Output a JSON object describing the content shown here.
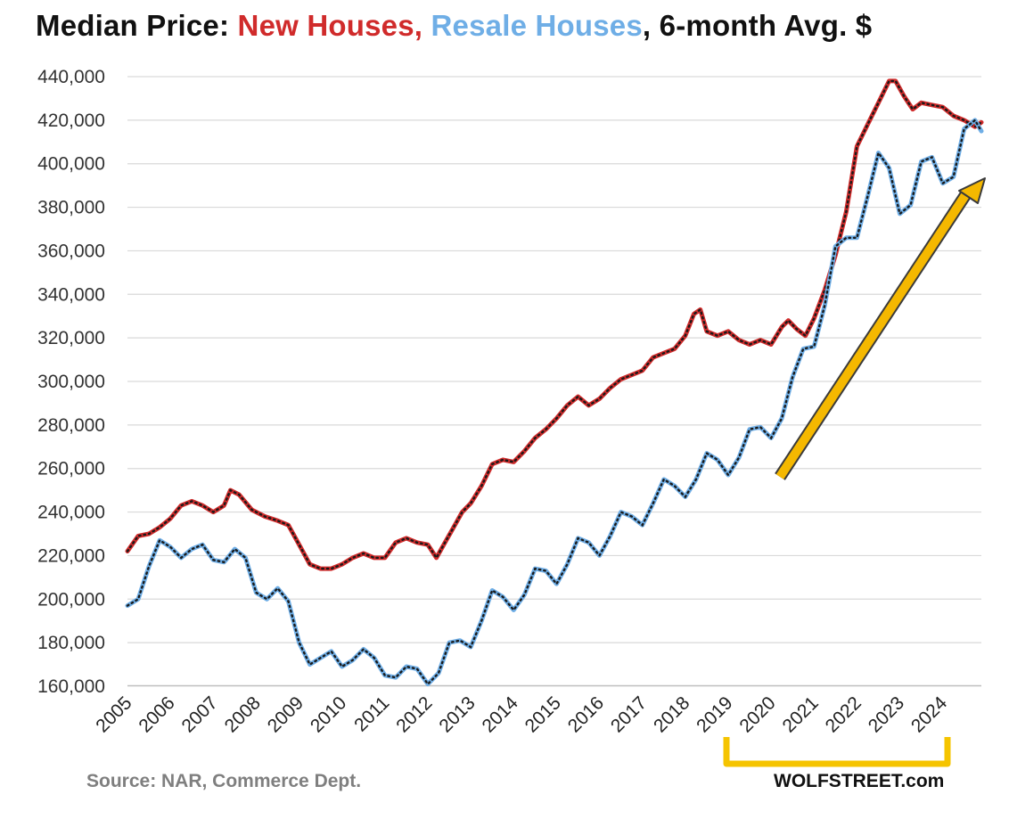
{
  "title_parts": {
    "prefix": "Median Price: ",
    "series1": "New Houses,",
    "series2": " Resale Houses",
    "suffix": ", 6-month Avg. $"
  },
  "source": "Source: NAR, Commerce Dept.",
  "watermark": "WOLFSTREET.com",
  "colors": {
    "new_houses": "#d02b2b",
    "resale_houses": "#6faee6",
    "arrow": "#f5b800",
    "bracket": "#f5c400",
    "grid": "#d9d9d9"
  },
  "chart_data": {
    "type": "line",
    "title": "Median Price: New Houses, Resale Houses, 6-month Avg. $",
    "ylim": [
      160000,
      440000
    ],
    "yticks": [
      "160,000",
      "180,000",
      "200,000",
      "220,000",
      "240,000",
      "260,000",
      "280,000",
      "300,000",
      "320,000",
      "340,000",
      "360,000",
      "380,000",
      "400,000",
      "420,000",
      "440,000"
    ],
    "xlim": [
      2005,
      2024.9
    ],
    "xticks": [
      "2005",
      "2006",
      "2007",
      "2008",
      "2009",
      "2010",
      "2011",
      "2012",
      "2013",
      "2014",
      "2015",
      "2016",
      "2017",
      "2018",
      "2019",
      "2020",
      "2021",
      "2022",
      "2023",
      "2024"
    ],
    "grid": "horizontal",
    "series": [
      {
        "name": "New Houses",
        "color": "#d02b2b",
        "points": [
          [
            2005.0,
            222000
          ],
          [
            2005.25,
            229000
          ],
          [
            2005.5,
            230000
          ],
          [
            2005.75,
            233000
          ],
          [
            2006.0,
            237000
          ],
          [
            2006.25,
            243000
          ],
          [
            2006.5,
            245000
          ],
          [
            2006.75,
            243000
          ],
          [
            2007.0,
            240000
          ],
          [
            2007.25,
            243000
          ],
          [
            2007.4,
            250000
          ],
          [
            2007.6,
            248000
          ],
          [
            2007.9,
            241000
          ],
          [
            2008.2,
            238000
          ],
          [
            2008.5,
            236000
          ],
          [
            2008.75,
            234000
          ],
          [
            2009.0,
            225000
          ],
          [
            2009.25,
            216000
          ],
          [
            2009.5,
            214000
          ],
          [
            2009.75,
            214000
          ],
          [
            2010.0,
            216000
          ],
          [
            2010.25,
            219000
          ],
          [
            2010.5,
            221000
          ],
          [
            2010.75,
            219000
          ],
          [
            2011.0,
            219000
          ],
          [
            2011.25,
            226000
          ],
          [
            2011.5,
            228000
          ],
          [
            2011.75,
            226000
          ],
          [
            2012.0,
            225000
          ],
          [
            2012.2,
            219000
          ],
          [
            2012.4,
            226000
          ],
          [
            2012.6,
            233000
          ],
          [
            2012.8,
            240000
          ],
          [
            2013.0,
            244000
          ],
          [
            2013.25,
            252000
          ],
          [
            2013.5,
            262000
          ],
          [
            2013.75,
            264000
          ],
          [
            2014.0,
            263000
          ],
          [
            2014.25,
            268000
          ],
          [
            2014.5,
            274000
          ],
          [
            2014.75,
            278000
          ],
          [
            2015.0,
            283000
          ],
          [
            2015.25,
            289000
          ],
          [
            2015.5,
            293000
          ],
          [
            2015.75,
            289000
          ],
          [
            2016.0,
            292000
          ],
          [
            2016.25,
            297000
          ],
          [
            2016.5,
            301000
          ],
          [
            2016.75,
            303000
          ],
          [
            2017.0,
            305000
          ],
          [
            2017.25,
            311000
          ],
          [
            2017.5,
            313000
          ],
          [
            2017.75,
            315000
          ],
          [
            2018.0,
            321000
          ],
          [
            2018.2,
            331000
          ],
          [
            2018.35,
            333000
          ],
          [
            2018.5,
            323000
          ],
          [
            2018.75,
            321000
          ],
          [
            2019.0,
            323000
          ],
          [
            2019.25,
            319000
          ],
          [
            2019.5,
            317000
          ],
          [
            2019.75,
            319000
          ],
          [
            2020.0,
            317000
          ],
          [
            2020.25,
            325000
          ],
          [
            2020.4,
            328000
          ],
          [
            2020.6,
            324000
          ],
          [
            2020.8,
            321000
          ],
          [
            2021.0,
            329000
          ],
          [
            2021.25,
            342000
          ],
          [
            2021.5,
            358000
          ],
          [
            2021.75,
            378000
          ],
          [
            2022.0,
            408000
          ],
          [
            2022.25,
            418000
          ],
          [
            2022.5,
            428000
          ],
          [
            2022.75,
            438000
          ],
          [
            2022.9,
            438000
          ],
          [
            2023.1,
            431000
          ],
          [
            2023.3,
            425000
          ],
          [
            2023.5,
            428000
          ],
          [
            2023.75,
            427000
          ],
          [
            2024.0,
            426000
          ],
          [
            2024.25,
            422000
          ],
          [
            2024.5,
            420000
          ],
          [
            2024.75,
            417000
          ],
          [
            2024.9,
            419000
          ]
        ]
      },
      {
        "name": "Resale Houses",
        "color": "#6faee6",
        "points": [
          [
            2005.0,
            197000
          ],
          [
            2005.25,
            200000
          ],
          [
            2005.5,
            215000
          ],
          [
            2005.75,
            227000
          ],
          [
            2006.0,
            224000
          ],
          [
            2006.25,
            219000
          ],
          [
            2006.5,
            223000
          ],
          [
            2006.75,
            225000
          ],
          [
            2007.0,
            218000
          ],
          [
            2007.25,
            217000
          ],
          [
            2007.5,
            223000
          ],
          [
            2007.75,
            219000
          ],
          [
            2008.0,
            203000
          ],
          [
            2008.25,
            200000
          ],
          [
            2008.5,
            205000
          ],
          [
            2008.75,
            199000
          ],
          [
            2009.0,
            180000
          ],
          [
            2009.25,
            170000
          ],
          [
            2009.5,
            173000
          ],
          [
            2009.75,
            176000
          ],
          [
            2010.0,
            169000
          ],
          [
            2010.25,
            172000
          ],
          [
            2010.5,
            177000
          ],
          [
            2010.75,
            173000
          ],
          [
            2011.0,
            165000
          ],
          [
            2011.25,
            164000
          ],
          [
            2011.5,
            169000
          ],
          [
            2011.75,
            168000
          ],
          [
            2012.0,
            161000
          ],
          [
            2012.25,
            166000
          ],
          [
            2012.5,
            180000
          ],
          [
            2012.75,
            181000
          ],
          [
            2013.0,
            178000
          ],
          [
            2013.25,
            190000
          ],
          [
            2013.5,
            204000
          ],
          [
            2013.75,
            201000
          ],
          [
            2014.0,
            195000
          ],
          [
            2014.25,
            202000
          ],
          [
            2014.5,
            214000
          ],
          [
            2014.75,
            213000
          ],
          [
            2015.0,
            207000
          ],
          [
            2015.25,
            216000
          ],
          [
            2015.5,
            228000
          ],
          [
            2015.75,
            226000
          ],
          [
            2016.0,
            220000
          ],
          [
            2016.25,
            229000
          ],
          [
            2016.5,
            240000
          ],
          [
            2016.75,
            238000
          ],
          [
            2017.0,
            234000
          ],
          [
            2017.25,
            244000
          ],
          [
            2017.5,
            255000
          ],
          [
            2017.75,
            252000
          ],
          [
            2018.0,
            247000
          ],
          [
            2018.25,
            255000
          ],
          [
            2018.5,
            267000
          ],
          [
            2018.75,
            264000
          ],
          [
            2019.0,
            257000
          ],
          [
            2019.25,
            265000
          ],
          [
            2019.5,
            278000
          ],
          [
            2019.75,
            279000
          ],
          [
            2020.0,
            274000
          ],
          [
            2020.25,
            283000
          ],
          [
            2020.5,
            302000
          ],
          [
            2020.75,
            315000
          ],
          [
            2021.0,
            316000
          ],
          [
            2021.25,
            335000
          ],
          [
            2021.5,
            362000
          ],
          [
            2021.75,
            366000
          ],
          [
            2022.0,
            366000
          ],
          [
            2022.25,
            385000
          ],
          [
            2022.5,
            405000
          ],
          [
            2022.75,
            398000
          ],
          [
            2023.0,
            377000
          ],
          [
            2023.25,
            381000
          ],
          [
            2023.5,
            401000
          ],
          [
            2023.75,
            403000
          ],
          [
            2024.0,
            391000
          ],
          [
            2024.25,
            394000
          ],
          [
            2024.5,
            416000
          ],
          [
            2024.75,
            420000
          ],
          [
            2024.9,
            415000
          ]
        ]
      }
    ]
  }
}
